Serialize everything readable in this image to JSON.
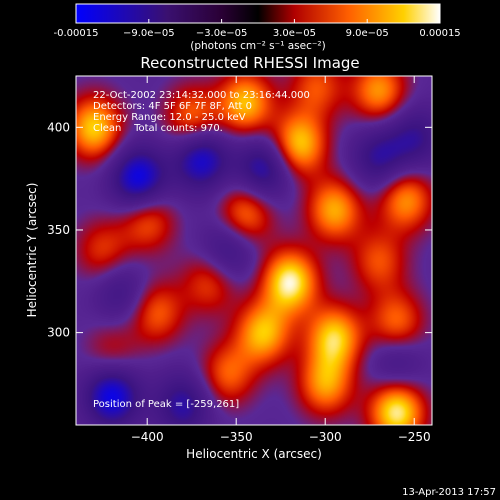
{
  "colorbar": {
    "ticks": [
      "-0.00015",
      "−9.0e−05",
      "−3.0e−05",
      "3.0e−05",
      "9.0e−05",
      "0.00015"
    ],
    "tick_values": [
      -0.00015,
      -9e-05,
      -3e-05,
      3e-05,
      9e-05,
      0.00015
    ],
    "range": [
      -0.00015,
      0.00015
    ],
    "unit_label": "(photons cm⁻² s⁻¹ asec⁻²)"
  },
  "chart_data": {
    "type": "heatmap",
    "title": "Reconstructed RHESSI Image",
    "xlabel": "Heliocentric X (arcsec)",
    "ylabel": "Heliocentric Y (arcsec)",
    "xlim": [
      -440,
      -240
    ],
    "ylim": [
      255,
      425
    ],
    "xticks": [
      -400,
      -350,
      -300,
      -250
    ],
    "yticks": [
      300,
      350,
      400
    ],
    "info_lines": [
      "22-Oct-2002 23:14:32.000 to 23:16:44.000",
      "Detectors: 4F 5F 6F 7F 8F, Att 0",
      "Energy Range: 12.0 - 25.0 keV",
      "Clean    Total counts: 970."
    ],
    "peak_label": "Position of Peak = [-259,261]",
    "sources": [
      {
        "x": -430,
        "y": 400,
        "v": 0.85
      },
      {
        "x": -375,
        "y": 405,
        "v": 0.6
      },
      {
        "x": -345,
        "y": 412,
        "v": 0.8
      },
      {
        "x": -305,
        "y": 420,
        "v": 0.5
      },
      {
        "x": -315,
        "y": 392,
        "v": 0.85
      },
      {
        "x": -270,
        "y": 418,
        "v": 0.7
      },
      {
        "x": -255,
        "y": 365,
        "v": 0.7
      },
      {
        "x": -295,
        "y": 360,
        "v": 0.75
      },
      {
        "x": -345,
        "y": 358,
        "v": 0.65
      },
      {
        "x": -400,
        "y": 355,
        "v": 0.55
      },
      {
        "x": -425,
        "y": 340,
        "v": 0.45
      },
      {
        "x": -395,
        "y": 310,
        "v": 0.55
      },
      {
        "x": -365,
        "y": 325,
        "v": 0.5
      },
      {
        "x": -320,
        "y": 325,
        "v": 1.0
      },
      {
        "x": -335,
        "y": 300,
        "v": 0.8
      },
      {
        "x": -295,
        "y": 298,
        "v": 0.85
      },
      {
        "x": -260,
        "y": 305,
        "v": 0.6
      },
      {
        "x": -355,
        "y": 280,
        "v": 0.55
      },
      {
        "x": -300,
        "y": 275,
        "v": 0.7
      },
      {
        "x": -260,
        "y": 262,
        "v": 1.0
      },
      {
        "x": -420,
        "y": 290,
        "v": 0.35
      },
      {
        "x": -270,
        "y": 335,
        "v": 0.5
      }
    ],
    "sinks": [
      {
        "x": -405,
        "y": 375,
        "v": -0.9
      },
      {
        "x": -370,
        "y": 385,
        "v": -0.8
      },
      {
        "x": -335,
        "y": 380,
        "v": -0.7
      },
      {
        "x": -420,
        "y": 270,
        "v": -0.9
      },
      {
        "x": -380,
        "y": 265,
        "v": -0.6
      },
      {
        "x": -355,
        "y": 340,
        "v": -0.5
      },
      {
        "x": -270,
        "y": 385,
        "v": -0.55
      },
      {
        "x": -250,
        "y": 395,
        "v": -0.5
      },
      {
        "x": -415,
        "y": 320,
        "v": -0.4
      },
      {
        "x": -260,
        "y": 285,
        "v": -0.4
      }
    ]
  },
  "footer": {
    "date": "13-Apr-2013 17:57"
  }
}
